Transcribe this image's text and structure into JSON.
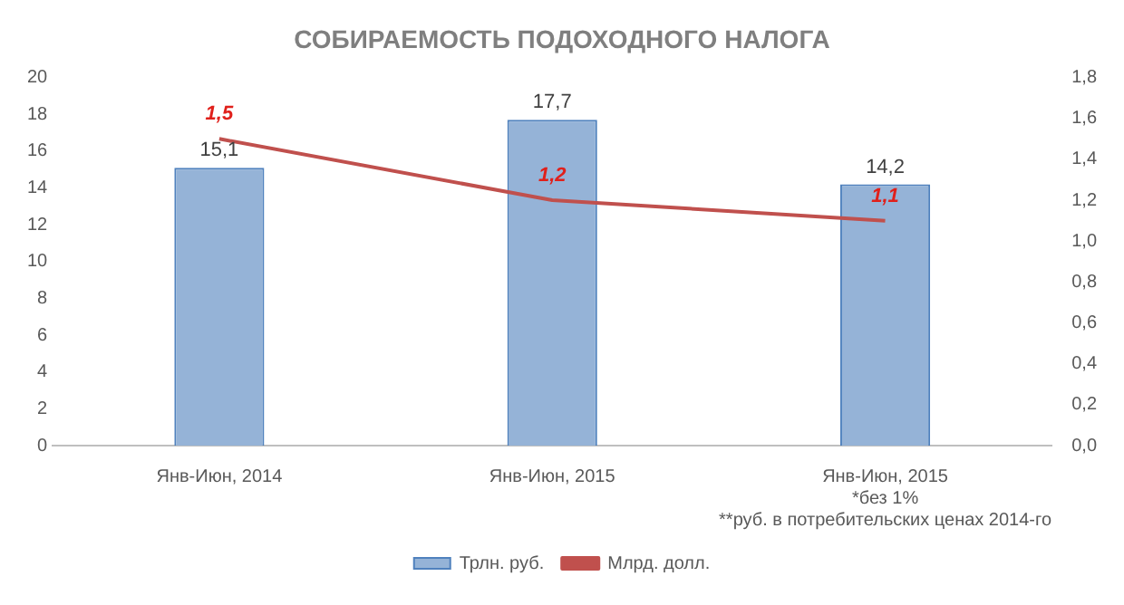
{
  "chart_data": {
    "type": "bar",
    "title": "СОБИРАЕМОСТЬ ПОДОХОДНОГО НАЛОГА",
    "categories": [
      "Янв-Июн, 2014",
      "Янв-Июн, 2015",
      "Янв-Июн, 2015\n*без 1%\n**руб. в потребительских ценах 2014-го"
    ],
    "series": [
      {
        "name": "Трлн. руб.",
        "color": "#95b3d7",
        "values": [
          15.1,
          17.7,
          14.2
        ],
        "value_labels": [
          "15,1",
          "17,7",
          "14,2"
        ]
      },
      {
        "name": "Млрд. долл.",
        "type": "line",
        "axis": "y2",
        "color": "#c0504d",
        "values": [
          1.5,
          1.2,
          1.1
        ],
        "value_labels": [
          "1,5",
          "1,2",
          "1,1"
        ]
      }
    ],
    "ylim": [
      0,
      20
    ],
    "yticks": [
      0,
      2,
      4,
      6,
      8,
      10,
      12,
      14,
      16,
      18,
      20
    ],
    "y2lim": [
      0,
      1.8
    ],
    "y2ticks": [
      {
        "value": 0,
        "label": "0,0"
      },
      {
        "value": 0.2,
        "label": "0,2"
      },
      {
        "value": 0.4,
        "label": "0,4"
      },
      {
        "value": 0.6,
        "label": "0,6"
      },
      {
        "value": 0.8,
        "label": "0,8"
      },
      {
        "value": 1,
        "label": "1,0"
      },
      {
        "value": 1.2,
        "label": "1,2"
      },
      {
        "value": 1.4,
        "label": "1,4"
      },
      {
        "value": 1.6,
        "label": "1,6"
      },
      {
        "value": 1.8,
        "label": "1,8"
      }
    ],
    "grid": false,
    "legend": "bottom",
    "marker": "none",
    "line_style": "solid"
  }
}
